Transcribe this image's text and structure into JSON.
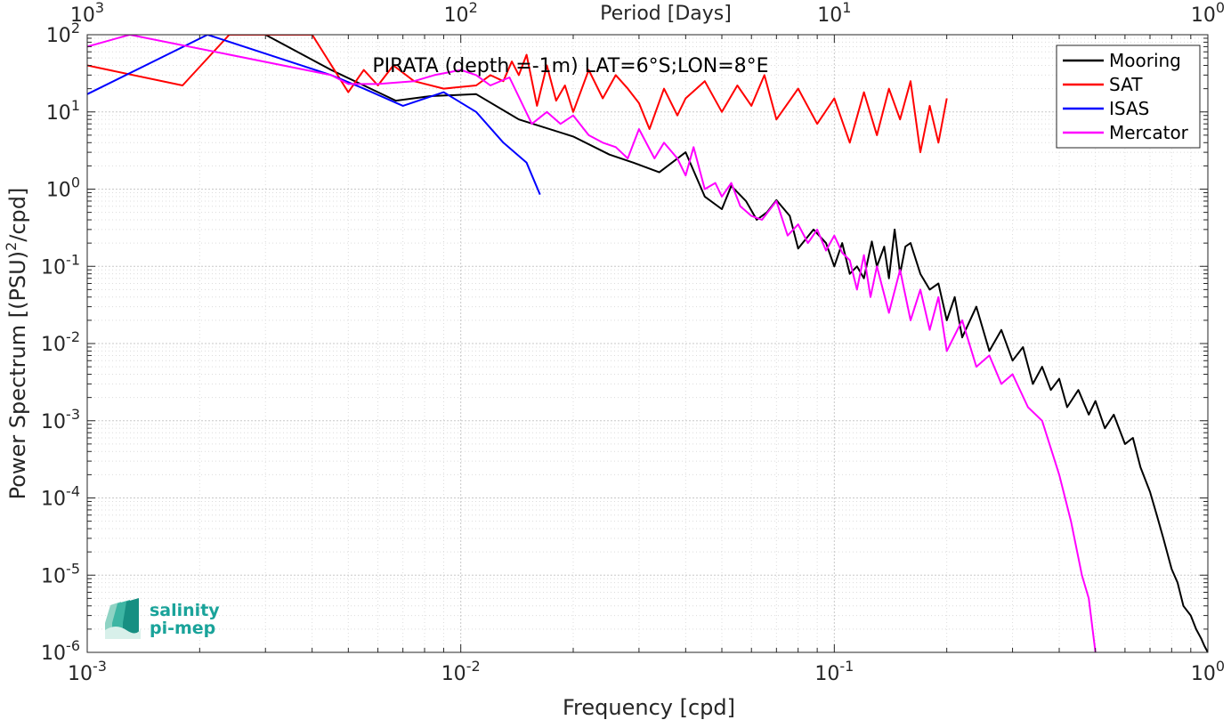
{
  "chart_data": {
    "type": "line",
    "title": "PIRATA (depth =-1m) LAT=6°S;LON=8°E",
    "xlabel": "Frequency [cpd]",
    "ylabel": "Power Spectrum [(PSU)",
    "ylabel_sup": "2",
    "ylabel_tail": "/cpd]",
    "top_xlabel": "Period [Days]",
    "xscale": "log",
    "yscale": "log",
    "xlim": [
      0.001,
      1
    ],
    "ylim": [
      1e-06,
      100
    ],
    "grid": true,
    "legend_position": "top-right",
    "bottom_ticks": [
      {
        "value": 0.001,
        "base": "10",
        "exp": "-3"
      },
      {
        "value": 0.01,
        "base": "10",
        "exp": "-2"
      },
      {
        "value": 0.1,
        "base": "10",
        "exp": "-1"
      },
      {
        "value": 1,
        "base": "10",
        "exp": "0"
      }
    ],
    "top_ticks": [
      {
        "value": 0.001,
        "base": "10",
        "exp": "3"
      },
      {
        "value": 0.01,
        "base": "10",
        "exp": "2"
      },
      {
        "value": 0.1,
        "base": "10",
        "exp": "1"
      },
      {
        "value": 1,
        "base": "10",
        "exp": "0"
      }
    ],
    "y_ticks": [
      {
        "value": 100,
        "base": "10",
        "exp": "2"
      },
      {
        "value": 10,
        "base": "10",
        "exp": "1"
      },
      {
        "value": 1,
        "base": "10",
        "exp": "0"
      },
      {
        "value": 0.1,
        "base": "10",
        "exp": "-1"
      },
      {
        "value": 0.01,
        "base": "10",
        "exp": "-2"
      },
      {
        "value": 0.001,
        "base": "10",
        "exp": "-3"
      },
      {
        "value": 0.0001,
        "base": "10",
        "exp": "-4"
      },
      {
        "value": 1e-05,
        "base": "10",
        "exp": "-5"
      },
      {
        "value": 1e-06,
        "base": "10",
        "exp": "-6"
      }
    ],
    "series": [
      {
        "name": "Mooring",
        "color": "#000000",
        "x": [
          0.003,
          0.0045,
          0.0055,
          0.0067,
          0.0083,
          0.011,
          0.0143,
          0.02,
          0.025,
          0.029,
          0.034,
          0.04,
          0.045,
          0.05,
          0.053,
          0.058,
          0.062,
          0.066,
          0.07,
          0.076,
          0.08,
          0.088,
          0.095,
          0.1,
          0.105,
          0.11,
          0.115,
          0.12,
          0.126,
          0.13,
          0.136,
          0.14,
          0.145,
          0.15,
          0.155,
          0.16,
          0.17,
          0.18,
          0.19,
          0.2,
          0.21,
          0.22,
          0.24,
          0.26,
          0.28,
          0.3,
          0.32,
          0.34,
          0.36,
          0.38,
          0.4,
          0.42,
          0.45,
          0.48,
          0.5,
          0.53,
          0.56,
          0.6,
          0.63,
          0.66,
          0.7,
          0.73,
          0.76,
          0.8,
          0.83,
          0.86,
          0.9,
          0.93,
          0.96,
          0.98,
          1.0
        ],
        "y": [
          100,
          35,
          22,
          14,
          16,
          17,
          8,
          4.8,
          2.8,
          2.2,
          1.65,
          3.0,
          0.8,
          0.55,
          1.1,
          0.7,
          0.4,
          0.5,
          0.72,
          0.45,
          0.17,
          0.3,
          0.2,
          0.1,
          0.2,
          0.08,
          0.1,
          0.07,
          0.21,
          0.1,
          0.18,
          0.07,
          0.3,
          0.08,
          0.18,
          0.2,
          0.08,
          0.05,
          0.06,
          0.02,
          0.04,
          0.012,
          0.03,
          0.008,
          0.015,
          0.006,
          0.009,
          0.003,
          0.005,
          0.0025,
          0.0035,
          0.0015,
          0.0025,
          0.0012,
          0.0018,
          0.0008,
          0.0012,
          0.0005,
          0.0006,
          0.00025,
          0.00012,
          6e-05,
          3e-05,
          1.2e-05,
          8e-06,
          4e-06,
          3e-06,
          2e-06,
          1.5e-06,
          1.2e-06,
          1e-06
        ]
      },
      {
        "name": "SAT",
        "color": "#ff0000",
        "x": [
          0.001,
          0.0018,
          0.0024,
          0.003,
          0.004,
          0.005,
          0.0055,
          0.006,
          0.0066,
          0.0075,
          0.009,
          0.011,
          0.012,
          0.013,
          0.0137,
          0.0143,
          0.015,
          0.016,
          0.017,
          0.018,
          0.019,
          0.02,
          0.022,
          0.024,
          0.026,
          0.028,
          0.03,
          0.032,
          0.035,
          0.038,
          0.04,
          0.045,
          0.05,
          0.055,
          0.06,
          0.065,
          0.07,
          0.08,
          0.09,
          0.1,
          0.11,
          0.12,
          0.13,
          0.14,
          0.15,
          0.16,
          0.17,
          0.18,
          0.19,
          0.2
        ],
        "y": [
          40,
          22,
          100,
          100,
          100,
          18,
          35,
          22,
          40,
          25,
          20,
          22,
          30,
          25,
          45,
          30,
          55,
          12,
          40,
          14,
          22,
          10,
          35,
          15,
          30,
          20,
          13,
          6,
          20,
          9,
          15,
          25,
          10,
          22,
          12,
          30,
          8,
          20,
          7,
          15,
          4,
          18,
          5,
          20,
          8,
          25,
          3,
          12,
          4,
          15
        ]
      },
      {
        "name": "ISAS",
        "color": "#0000ff",
        "x": [
          0.001,
          0.0021,
          0.0045,
          0.0055,
          0.007,
          0.009,
          0.011,
          0.013,
          0.015,
          0.0163
        ],
        "y": [
          17,
          100,
          30,
          20,
          12,
          18,
          10,
          4,
          2.2,
          0.85
        ]
      },
      {
        "name": "Mercator",
        "color": "#ff00ff",
        "x": [
          0.001,
          0.0013,
          0.0045,
          0.005,
          0.006,
          0.0075,
          0.0085,
          0.01,
          0.011,
          0.012,
          0.0135,
          0.0155,
          0.017,
          0.0185,
          0.02,
          0.022,
          0.024,
          0.026,
          0.028,
          0.03,
          0.033,
          0.035,
          0.038,
          0.04,
          0.042,
          0.045,
          0.048,
          0.05,
          0.053,
          0.056,
          0.06,
          0.064,
          0.07,
          0.075,
          0.08,
          0.085,
          0.09,
          0.095,
          0.1,
          0.105,
          0.11,
          0.115,
          0.12,
          0.125,
          0.13,
          0.14,
          0.15,
          0.16,
          0.17,
          0.18,
          0.19,
          0.2,
          0.22,
          0.24,
          0.26,
          0.28,
          0.3,
          0.33,
          0.36,
          0.4,
          0.43,
          0.46,
          0.48,
          0.5
        ],
        "y": [
          70,
          100,
          30,
          23,
          23,
          25,
          30,
          35,
          30,
          22,
          28,
          7,
          10,
          7,
          9,
          5,
          4,
          3.5,
          2.5,
          6,
          2.5,
          4,
          2.5,
          1.5,
          3.5,
          1,
          1.2,
          0.8,
          1.2,
          0.6,
          0.45,
          0.4,
          0.7,
          0.25,
          0.35,
          0.2,
          0.3,
          0.16,
          0.25,
          0.15,
          0.12,
          0.05,
          0.14,
          0.04,
          0.1,
          0.025,
          0.09,
          0.02,
          0.05,
          0.015,
          0.04,
          0.008,
          0.02,
          0.005,
          0.007,
          0.003,
          0.004,
          0.0015,
          0.001,
          0.0002,
          5e-05,
          1e-05,
          5e-06,
          1e-06
        ]
      }
    ]
  },
  "logo": {
    "line1": "salinity",
    "line2": "pi-mep"
  }
}
